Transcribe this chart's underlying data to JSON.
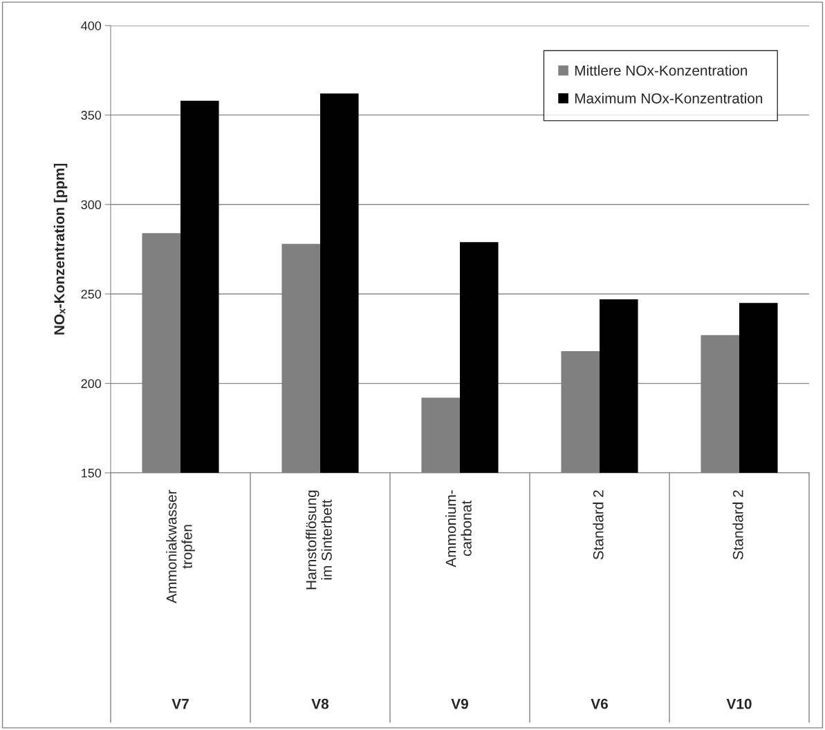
{
  "chart_data": {
    "type": "bar",
    "ylabel": "NOₓ-Konzentration [ppm]",
    "categories": [
      "Ammoniakwasser\ntropfen",
      "Harnstofflösung\nim Sinterbett",
      "Ammonium-\ncarbonat",
      "Standard 2",
      "Standard 2"
    ],
    "series": [
      {
        "name": "Mittlere NOx-Konzentration",
        "color": "#808080",
        "values": [
          284,
          278,
          192,
          218,
          227
        ]
      },
      {
        "name": "Maximum NOx-Konzentration",
        "color": "#000000",
        "values": [
          358,
          362,
          279,
          247,
          245
        ]
      }
    ],
    "ylim": [
      150,
      400
    ],
    "yticks": [
      150,
      200,
      250,
      300,
      350,
      400
    ],
    "grid": "y",
    "legend": "top right",
    "annotations": [
      "V7",
      "V8",
      "V9",
      "V6",
      "V10"
    ]
  }
}
